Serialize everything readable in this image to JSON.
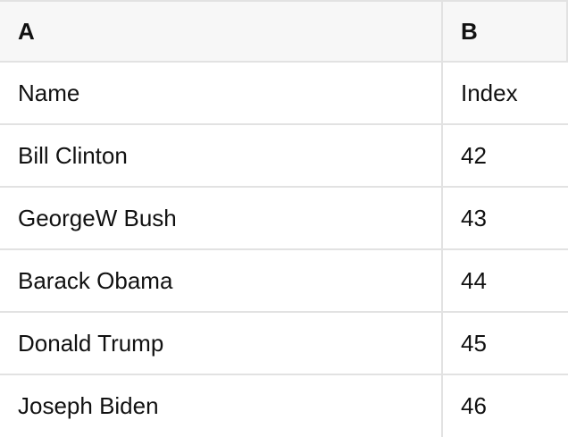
{
  "table": {
    "column_headers": [
      "A",
      "B"
    ],
    "rows": [
      [
        "Name",
        "Index"
      ],
      [
        "Bill Clinton",
        "42"
      ],
      [
        "GeorgeW Bush",
        "43"
      ],
      [
        "Barack Obama",
        "44"
      ],
      [
        "Donald Trump",
        "45"
      ],
      [
        "Joseph Biden",
        "46"
      ]
    ]
  },
  "colors": {
    "header_bg": "#f7f7f7",
    "body_bg": "#ffffff",
    "border": "#e2e2e2",
    "text": "#111111"
  }
}
